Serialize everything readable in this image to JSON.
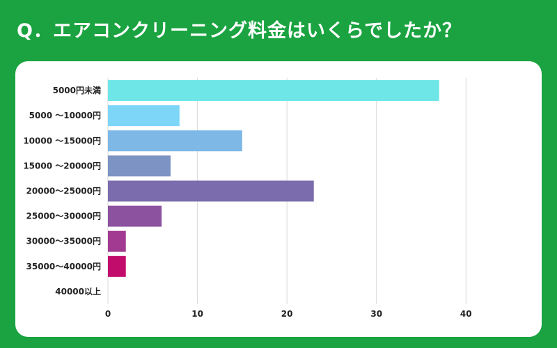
{
  "chart_data": {
    "type": "bar",
    "orientation": "horizontal",
    "title": "Q．エアコンクリーニング料金はいくらでしたか？",
    "categories": [
      "5000円未満",
      "5000 ～10000円",
      "10000 ～15000円",
      "15000 ～20000円",
      "20000～25000円",
      "25000～30000円",
      "30000～35000円",
      "35000～40000円",
      "40000以上"
    ],
    "values": [
      37,
      8,
      15,
      7,
      23,
      6,
      2,
      2,
      0
    ],
    "colors": [
      "#6ee6e8",
      "#7dd6f7",
      "#7eb8e6",
      "#7d93c4",
      "#7a6cad",
      "#8c519f",
      "#a23a91",
      "#c20c6c",
      "#c20c6c"
    ],
    "xlim": [
      0,
      42
    ],
    "xticks": [
      0,
      10,
      20,
      30,
      40
    ],
    "grid": true,
    "xlabel": "",
    "ylabel": ""
  }
}
